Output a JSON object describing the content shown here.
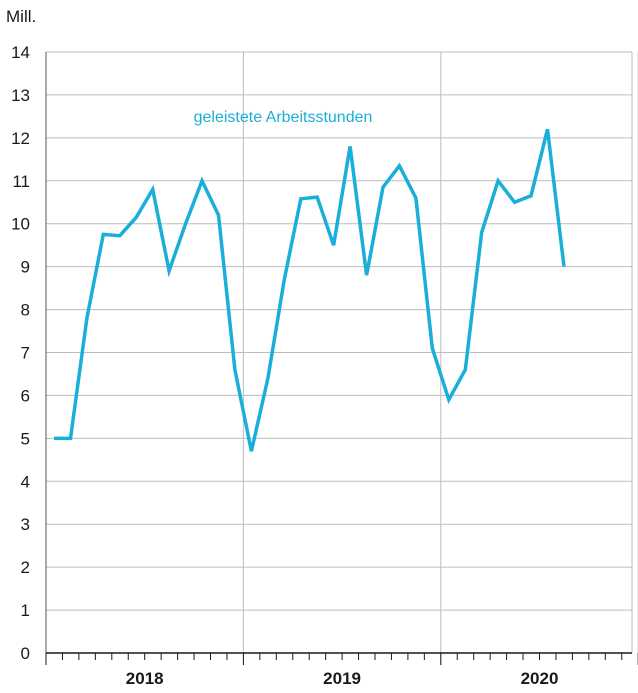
{
  "chart_data": {
    "type": "line",
    "unit_label": "Mill.",
    "ylim": [
      0,
      14
    ],
    "yticks": [
      "0",
      "1",
      "2",
      "3",
      "4",
      "5",
      "6",
      "7",
      "8",
      "9",
      "10",
      "11",
      "12",
      "13",
      "14"
    ],
    "years": [
      "2018",
      "2019",
      "2020"
    ],
    "months_per_year": 12,
    "grid": "horizontal and year separators",
    "series": [
      {
        "name": "geleistete Arbeitsstunden",
        "color": "#1aafd8",
        "values": [
          5.0,
          5.0,
          7.8,
          9.75,
          9.72,
          10.15,
          10.8,
          8.9,
          10.0,
          11.0,
          10.2,
          6.6,
          4.7,
          6.4,
          8.7,
          10.58,
          10.62,
          9.5,
          11.8,
          8.8,
          10.85,
          11.35,
          10.6,
          7.1,
          5.9,
          6.6,
          9.8,
          11.0,
          10.5,
          10.65,
          12.2,
          9.0
        ]
      }
    ]
  }
}
